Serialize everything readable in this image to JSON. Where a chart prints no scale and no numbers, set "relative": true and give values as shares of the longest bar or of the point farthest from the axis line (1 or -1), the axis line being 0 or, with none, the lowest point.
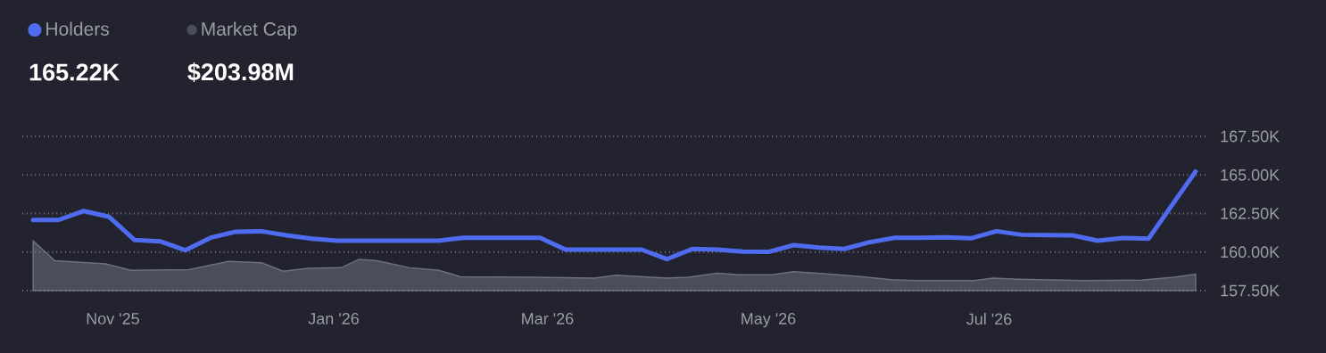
{
  "chart_data": [
    {
      "type": "line",
      "x": [
        "2025-10-10",
        "2025-10-17",
        "2025-10-24",
        "2025-10-31",
        "2025-11-07",
        "2025-11-14",
        "2025-11-21",
        "2025-11-28",
        "2025-12-05",
        "2025-12-12",
        "2025-12-19",
        "2025-12-26",
        "2026-01-02",
        "2026-01-09",
        "2026-01-16",
        "2026-01-23",
        "2026-01-30",
        "2026-02-06",
        "2026-02-13",
        "2026-02-20",
        "2026-02-27",
        "2026-03-06",
        "2026-03-13",
        "2026-03-20",
        "2026-03-27",
        "2026-04-03",
        "2026-04-10",
        "2026-04-17",
        "2026-04-24",
        "2026-05-01",
        "2026-05-08",
        "2026-05-15",
        "2026-05-22",
        "2026-05-29",
        "2026-06-05",
        "2026-06-12",
        "2026-06-19",
        "2026-06-26",
        "2026-07-03",
        "2026-07-10",
        "2026-07-17",
        "2026-07-24",
        "2026-07-31",
        "2026-08-07",
        "2026-08-14",
        "2026-08-27"
      ],
      "series": [
        {
          "name": "Holders",
          "color": "#4f6cf0",
          "values": [
            162080,
            162080,
            162660,
            162280,
            160780,
            160700,
            160120,
            160930,
            161320,
            161350,
            161080,
            160870,
            160740,
            160740,
            160740,
            160740,
            160740,
            160930,
            160930,
            160930,
            160930,
            160160,
            160160,
            160160,
            160160,
            159540,
            160200,
            160160,
            160030,
            160010,
            160450,
            160290,
            160200,
            160640,
            160930,
            160930,
            160950,
            160890,
            161350,
            161120,
            161100,
            161080,
            160740,
            160910,
            160870,
            165220
          ]
        }
      ],
      "xlim": [
        "2025-10-07",
        "2026-08-30"
      ],
      "xticks": [
        {
          "value": "2025-11-01",
          "label": "Nov '25"
        },
        {
          "value": "2026-01-01",
          "label": "Jan '26"
        },
        {
          "value": "2026-03-01",
          "label": "Mar '26"
        },
        {
          "value": "2026-05-01",
          "label": "May '26"
        },
        {
          "value": "2026-07-01",
          "label": "Jul '26"
        }
      ],
      "ylim": [
        157500,
        167500
      ],
      "yticks": [
        {
          "value": 157500,
          "label": "157.50K"
        },
        {
          "value": 160000,
          "label": "160.00K"
        },
        {
          "value": 162500,
          "label": "162.50K"
        },
        {
          "value": 165000,
          "label": "165.00K"
        },
        {
          "value": 167500,
          "label": "167.50K"
        }
      ],
      "grid": "y",
      "legend": "top left",
      "annotations": [
        "165.22K"
      ]
    },
    {
      "type": "area",
      "relative": true,
      "x": [
        "2025-10-10",
        "2025-10-16",
        "2025-10-30",
        "2025-11-06",
        "2025-11-22",
        "2025-12-03",
        "2025-12-12",
        "2025-12-18",
        "2025-12-25",
        "2026-01-03",
        "2026-01-08",
        "2026-01-13",
        "2026-01-22",
        "2026-01-30",
        "2026-02-05",
        "2026-02-25",
        "2026-03-14",
        "2026-03-20",
        "2026-04-03",
        "2026-04-09",
        "2026-04-17",
        "2026-04-23",
        "2026-05-02",
        "2026-05-08",
        "2026-05-18",
        "2026-05-27",
        "2026-06-04",
        "2026-06-11",
        "2026-06-27",
        "2026-07-02",
        "2026-07-09",
        "2026-07-27",
        "2026-08-12",
        "2026-08-21",
        "2026-08-27"
      ],
      "series": [
        {
          "name": "Market Cap",
          "color": "#4a4d5a",
          "values": [
            1,
            0.6,
            0.54,
            0.41,
            0.42,
            0.59,
            0.56,
            0.39,
            0.45,
            0.46,
            0.63,
            0.6,
            0.46,
            0.41,
            0.28,
            0.27,
            0.25,
            0.31,
            0.25,
            0.27,
            0.35,
            0.32,
            0.32,
            0.38,
            0.33,
            0.28,
            0.22,
            0.2,
            0.2,
            0.25,
            0.23,
            0.2,
            0.21,
            0.27,
            0.33
          ]
        }
      ],
      "xlim": [
        "2025-10-07",
        "2026-08-30"
      ],
      "legend": "top left",
      "annotations": [
        "$203.98M"
      ]
    }
  ]
}
